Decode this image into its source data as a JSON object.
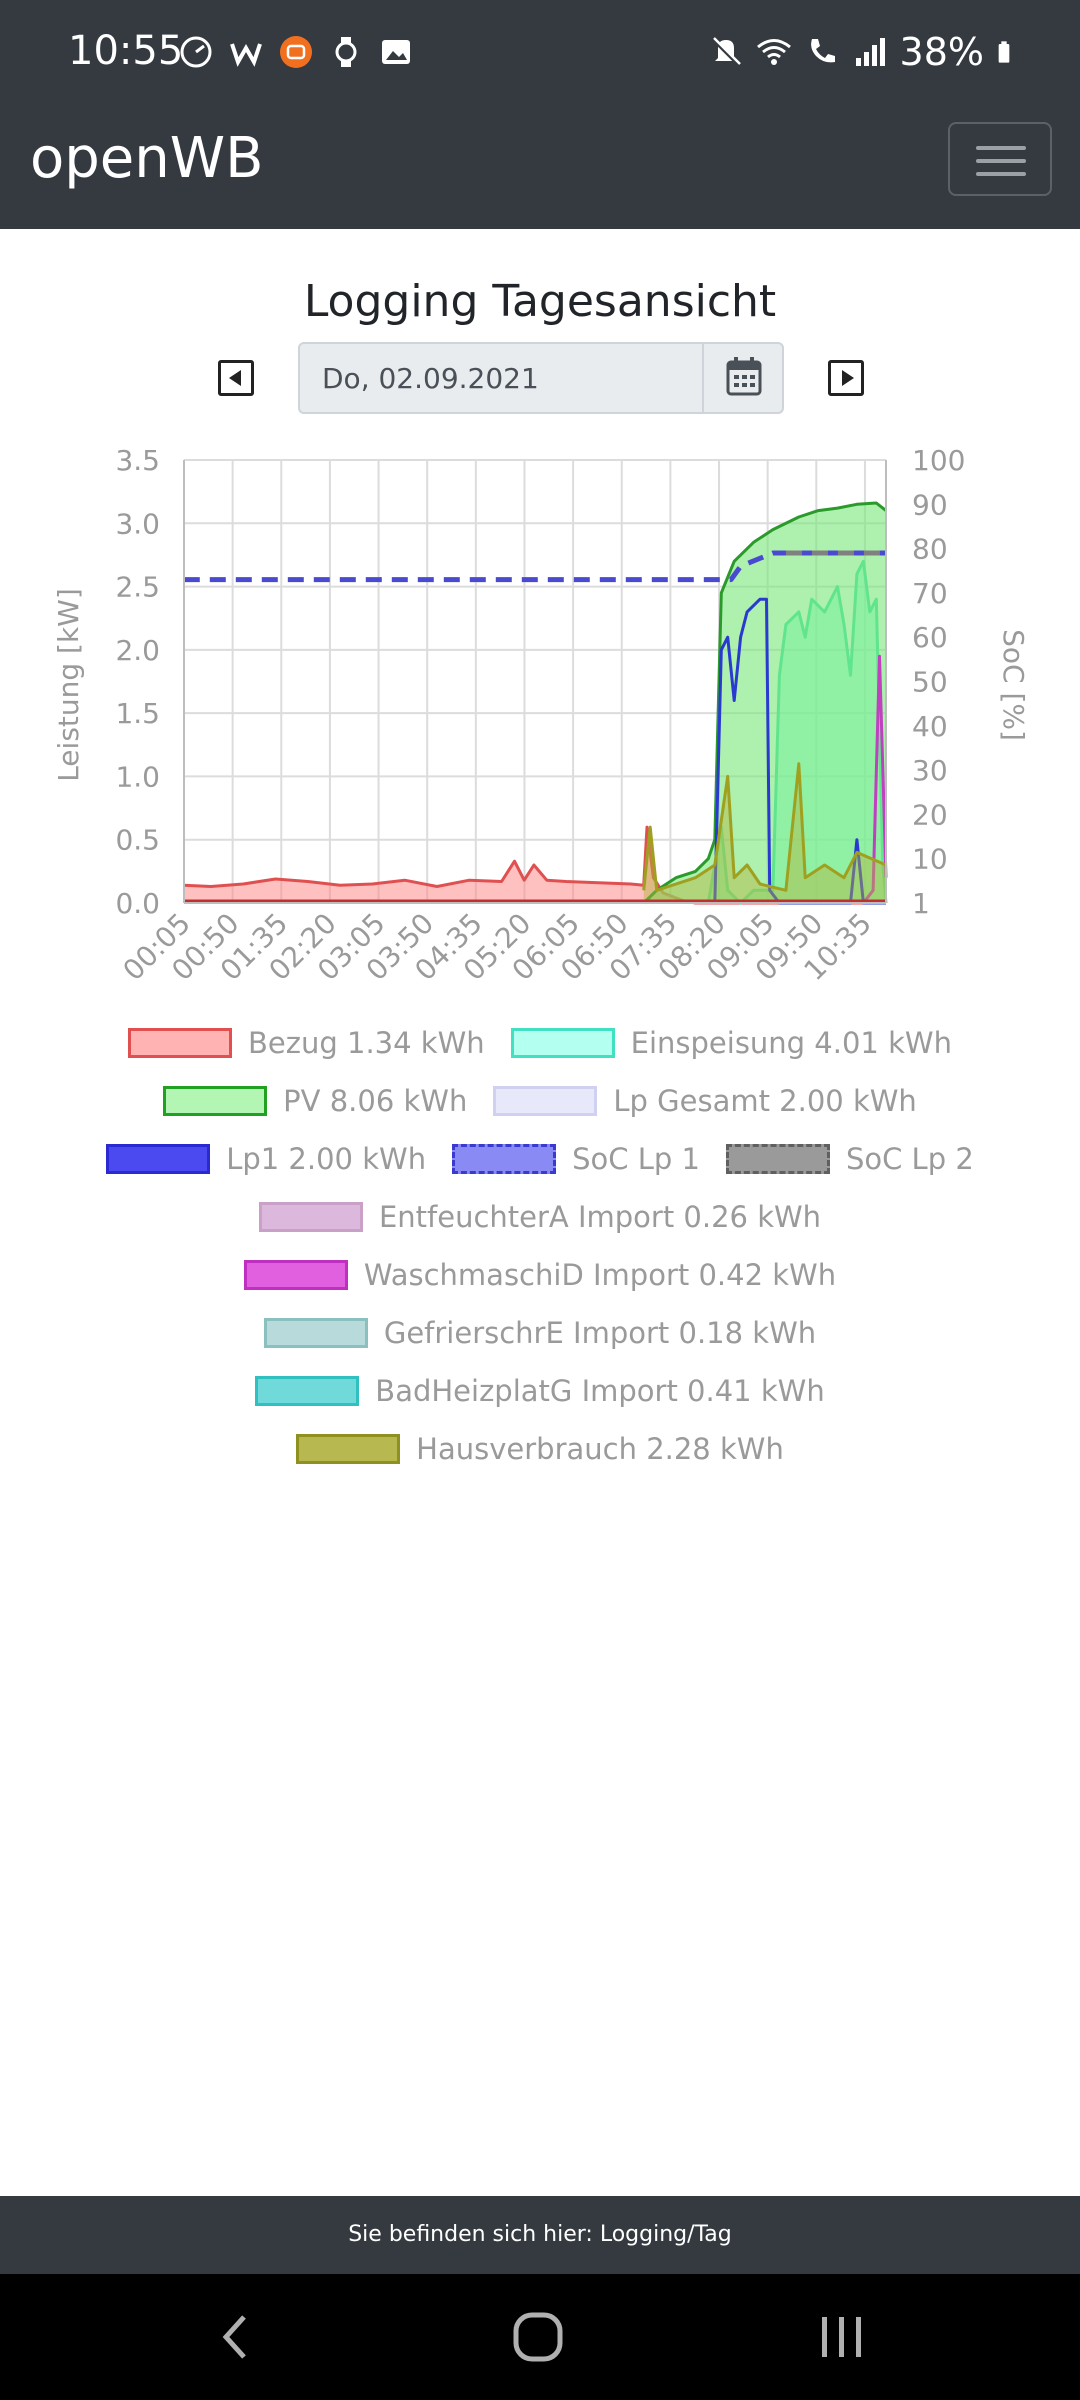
{
  "status_bar": {
    "time": "10:55",
    "battery": "38%",
    "left_icons": [
      "speed-icon",
      "w-icon",
      "mi-icon",
      "watch-icon",
      "image-icon"
    ],
    "right_icons": [
      "mute-icon",
      "wifi-icon",
      "call-icon",
      "signal-icon",
      "battery-icon"
    ]
  },
  "navbar": {
    "brand": "openWB",
    "menu_icon": "hamburger-menu-icon"
  },
  "page": {
    "title": "Logging Tagesansicht",
    "date_value": "Do, 02.09.2021",
    "calendar_icon": "calendar-icon",
    "prev_icon": "caret-left-icon",
    "next_icon": "caret-right-icon"
  },
  "chart_data": {
    "type": "area",
    "ylabel": "Leistung [kW]",
    "y2label": "SoC [%]",
    "ylim": [
      0,
      3.5
    ],
    "y2lim": [
      0,
      100
    ],
    "yticks": [
      "3.5",
      "3.0",
      "2.5",
      "2.0",
      "1.5",
      "1.0",
      "0.5",
      "0.0"
    ],
    "y2ticks": [
      "100",
      "90",
      "80",
      "70",
      "60",
      "50",
      "40",
      "30",
      "20",
      "10",
      "1"
    ],
    "xticks": [
      "00:05",
      "00:50",
      "01:35",
      "02:20",
      "03:05",
      "03:50",
      "04:35",
      "05:20",
      "06:05",
      "06:50",
      "07:35",
      "08:20",
      "09:05",
      "09:50",
      "10:35"
    ],
    "grid": true,
    "x_range_hours": [
      0.0833,
      10.95
    ],
    "series": [
      {
        "name": "Bezug",
        "axis": "left",
        "color": "#e05050",
        "fill": "rgba(255,130,130,0.5)",
        "points": [
          [
            0.08,
            0.14
          ],
          [
            0.5,
            0.13
          ],
          [
            1.0,
            0.15
          ],
          [
            1.5,
            0.19
          ],
          [
            2.0,
            0.17
          ],
          [
            2.5,
            0.14
          ],
          [
            3.0,
            0.15
          ],
          [
            3.5,
            0.18
          ],
          [
            4.0,
            0.13
          ],
          [
            4.5,
            0.18
          ],
          [
            5.0,
            0.17
          ],
          [
            5.2,
            0.33
          ],
          [
            5.35,
            0.18
          ],
          [
            5.5,
            0.3
          ],
          [
            5.7,
            0.18
          ],
          [
            6.0,
            0.17
          ],
          [
            6.5,
            0.16
          ],
          [
            7.0,
            0.15
          ],
          [
            7.2,
            0.14
          ],
          [
            7.25,
            0.6
          ],
          [
            7.35,
            0.2
          ],
          [
            7.5,
            0.08
          ],
          [
            7.8,
            0.02
          ],
          [
            8.0,
            0.0
          ],
          [
            10.95,
            0.0
          ]
        ]
      },
      {
        "name": "Einspeisung",
        "axis": "left",
        "color": "#40e0b0",
        "fill": "rgba(120,255,210,0.55)",
        "points": [
          [
            8.2,
            0.0
          ],
          [
            8.4,
            0.6
          ],
          [
            8.5,
            0.1
          ],
          [
            8.7,
            0.0
          ],
          [
            8.9,
            0.1
          ],
          [
            9.2,
            0.1
          ],
          [
            9.3,
            1.8
          ],
          [
            9.4,
            2.2
          ],
          [
            9.6,
            2.3
          ],
          [
            9.7,
            2.1
          ],
          [
            9.8,
            2.4
          ],
          [
            10.0,
            2.3
          ],
          [
            10.1,
            2.4
          ],
          [
            10.2,
            2.5
          ],
          [
            10.3,
            2.2
          ],
          [
            10.4,
            1.8
          ],
          [
            10.5,
            2.6
          ],
          [
            10.6,
            2.7
          ],
          [
            10.7,
            2.3
          ],
          [
            10.8,
            2.4
          ],
          [
            10.9,
            0.3
          ],
          [
            10.95,
            0.0
          ]
        ]
      },
      {
        "name": "PV",
        "axis": "left",
        "color": "#2a9a2a",
        "fill": "rgba(120,230,120,0.6)",
        "points": [
          [
            7.2,
            0.0
          ],
          [
            7.4,
            0.1
          ],
          [
            7.7,
            0.2
          ],
          [
            8.0,
            0.25
          ],
          [
            8.2,
            0.35
          ],
          [
            8.3,
            0.5
          ],
          [
            8.4,
            2.45
          ],
          [
            8.6,
            2.7
          ],
          [
            8.9,
            2.85
          ],
          [
            9.2,
            2.95
          ],
          [
            9.6,
            3.05
          ],
          [
            9.9,
            3.1
          ],
          [
            10.2,
            3.12
          ],
          [
            10.5,
            3.15
          ],
          [
            10.8,
            3.16
          ],
          [
            10.95,
            3.1
          ]
        ]
      },
      {
        "name": "Lp1",
        "axis": "left",
        "color": "#2a3ad0",
        "fill": "none",
        "points": [
          [
            8.3,
            0.0
          ],
          [
            8.4,
            2.0
          ],
          [
            8.5,
            2.1
          ],
          [
            8.6,
            1.6
          ],
          [
            8.7,
            2.1
          ],
          [
            8.8,
            2.3
          ],
          [
            9.0,
            2.4
          ],
          [
            9.1,
            2.4
          ],
          [
            9.15,
            0.1
          ],
          [
            9.3,
            0.0
          ],
          [
            10.4,
            0.0
          ],
          [
            10.5,
            0.5
          ],
          [
            10.6,
            0.0
          ],
          [
            10.8,
            0.0
          ],
          [
            10.95,
            0.0
          ]
        ]
      },
      {
        "name": "WaschmaschiD",
        "axis": "left",
        "color": "#c040c0",
        "fill": "none",
        "points": [
          [
            10.6,
            0.0
          ],
          [
            10.75,
            0.1
          ],
          [
            10.85,
            1.95
          ],
          [
            10.95,
            0.2
          ]
        ]
      },
      {
        "name": "Hausverbrauch",
        "axis": "left",
        "color": "#a0a020",
        "fill": "rgba(180,180,60,0.45)",
        "points": [
          [
            7.2,
            0.1
          ],
          [
            7.3,
            0.6
          ],
          [
            7.4,
            0.1
          ],
          [
            8.0,
            0.2
          ],
          [
            8.3,
            0.3
          ],
          [
            8.5,
            1.0
          ],
          [
            8.6,
            0.2
          ],
          [
            8.8,
            0.3
          ],
          [
            9.0,
            0.15
          ],
          [
            9.4,
            0.1
          ],
          [
            9.6,
            1.1
          ],
          [
            9.7,
            0.2
          ],
          [
            10.0,
            0.3
          ],
          [
            10.3,
            0.2
          ],
          [
            10.5,
            0.4
          ],
          [
            10.95,
            0.3
          ]
        ]
      },
      {
        "name": "SoC Lp 1",
        "axis": "right",
        "color": "#4a4ad0",
        "dashed": true,
        "points": [
          [
            0.08,
            73
          ],
          [
            8.55,
            73
          ],
          [
            8.7,
            76
          ],
          [
            9.2,
            79
          ],
          [
            10.95,
            79
          ]
        ]
      },
      {
        "name": "SoC Lp 2",
        "axis": "right",
        "color": "#808080",
        "dashed": true,
        "points": [
          [
            9.4,
            79
          ],
          [
            10.95,
            79
          ]
        ]
      }
    ],
    "legend": [
      {
        "label": "Bezug 1.34 kWh",
        "border": "#e05050",
        "fill": "#ffb3b3",
        "dashed": false
      },
      {
        "label": "Einspeisung 4.01 kWh",
        "border": "#40e0c0",
        "fill": "#b3fff0",
        "dashed": false
      },
      {
        "label": "PV 8.06 kWh",
        "border": "#22a022",
        "fill": "#b3f5b3",
        "dashed": false
      },
      {
        "label": "Lp Gesamt 2.00 kWh",
        "border": "#d0d0f0",
        "fill": "#e8e8fb",
        "dashed": false
      },
      {
        "label": "Lp1 2.00 kWh",
        "border": "#2a2ad0",
        "fill": "#4a4af0",
        "dashed": false
      },
      {
        "label": "SoC Lp 1",
        "border": "#3a3ad0",
        "fill": "#8a8af5",
        "dashed": true
      },
      {
        "label": "SoC Lp 2",
        "border": "#606060",
        "fill": "#9a9a9a",
        "dashed": true
      },
      {
        "label": "EntfeuchterA Import 0.26 kWh",
        "border": "#c8a0c8",
        "fill": "#dcb8dc",
        "dashed": false
      },
      {
        "label": "WaschmaschiD Import 0.42 kWh",
        "border": "#c030c0",
        "fill": "#e060e0",
        "dashed": false
      },
      {
        "label": "GefrierschrE Import 0.18 kWh",
        "border": "#8ac0c0",
        "fill": "#b8dada",
        "dashed": false
      },
      {
        "label": "BadHeizplatG Import 0.41 kWh",
        "border": "#30c0c0",
        "fill": "#70dada",
        "dashed": false
      },
      {
        "label": "Hausverbrauch 2.28 kWh",
        "border": "#909020",
        "fill": "#b8b850",
        "dashed": false
      }
    ]
  },
  "footer": {
    "text": "Sie befinden sich hier: Logging/Tag"
  },
  "system_nav": {
    "back_icon": "back-chevron-icon",
    "home_icon": "home-circle-icon",
    "recents_icon": "recents-lines-icon"
  }
}
